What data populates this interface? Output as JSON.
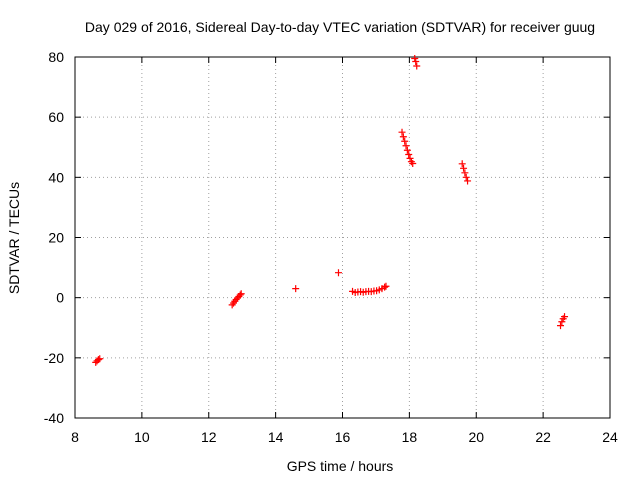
{
  "chart_data": {
    "type": "scatter",
    "title": "Day 029 of 2016, Sidereal Day-to-day VTEC variation (SDTVAR) for receiver guug",
    "xlabel": "GPS time / hours",
    "ylabel": "SDTVAR / TECUs",
    "xlim": [
      8,
      24
    ],
    "ylim": [
      -40,
      80
    ],
    "xticks": [
      8,
      10,
      12,
      14,
      16,
      18,
      20,
      22,
      24
    ],
    "yticks": [
      -40,
      -20,
      0,
      20,
      40,
      60,
      80
    ],
    "grid": true,
    "marker": "+",
    "color": "#ff0000",
    "series": [
      {
        "points": [
          [
            8.62,
            -21.5
          ],
          [
            8.66,
            -21.0
          ],
          [
            8.7,
            -20.6
          ],
          [
            8.74,
            -20.3
          ],
          [
            12.7,
            -2.4
          ],
          [
            12.74,
            -1.8
          ],
          [
            12.78,
            -1.2
          ],
          [
            12.82,
            -0.6
          ],
          [
            12.86,
            -0.1
          ],
          [
            12.9,
            0.4
          ],
          [
            12.94,
            0.9
          ],
          [
            12.97,
            1.3
          ],
          [
            14.6,
            3.0
          ],
          [
            15.88,
            8.3
          ],
          [
            16.3,
            2.1
          ],
          [
            16.38,
            1.7
          ],
          [
            16.46,
            1.9
          ],
          [
            16.54,
            2.0
          ],
          [
            16.62,
            1.8
          ],
          [
            16.7,
            2.0
          ],
          [
            16.78,
            2.1
          ],
          [
            16.86,
            2.0
          ],
          [
            16.94,
            2.2
          ],
          [
            17.02,
            2.3
          ],
          [
            17.1,
            2.6
          ],
          [
            17.18,
            3.0
          ],
          [
            17.26,
            3.5
          ],
          [
            17.3,
            3.8
          ],
          [
            17.78,
            55.0
          ],
          [
            17.82,
            53.5
          ],
          [
            17.86,
            52.0
          ],
          [
            17.9,
            50.5
          ],
          [
            17.94,
            49.0
          ],
          [
            17.98,
            47.6
          ],
          [
            18.02,
            46.3
          ],
          [
            18.06,
            45.2
          ],
          [
            18.1,
            44.6
          ],
          [
            18.16,
            79.5
          ],
          [
            18.19,
            78.5
          ],
          [
            18.22,
            77.0
          ],
          [
            19.58,
            44.5
          ],
          [
            19.62,
            43.0
          ],
          [
            19.66,
            41.5
          ],
          [
            19.7,
            40.0
          ],
          [
            19.74,
            38.8
          ],
          [
            22.52,
            -9.3
          ],
          [
            22.56,
            -8.0
          ],
          [
            22.6,
            -7.0
          ],
          [
            22.64,
            -6.3
          ]
        ]
      }
    ]
  }
}
